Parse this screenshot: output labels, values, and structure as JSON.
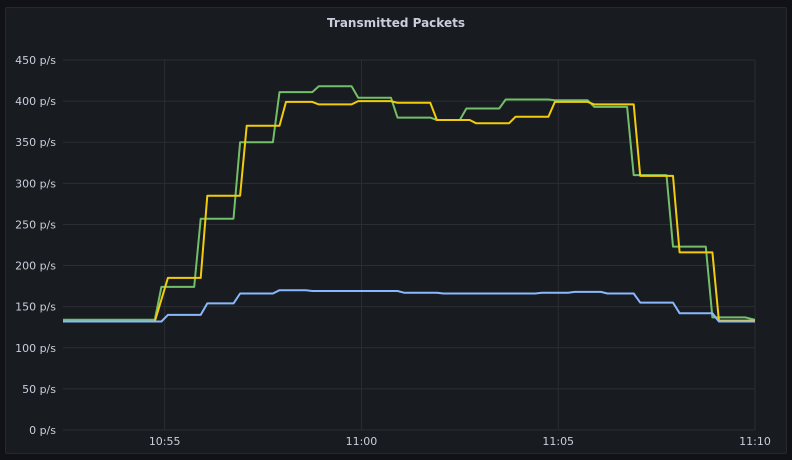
{
  "panel": {
    "title": "Transmitted Packets"
  },
  "colors": {
    "green": "#73bf69",
    "yellow": "#f2cc0c",
    "blue": "#8ab8ff",
    "grid": "#2b2e33"
  },
  "chart_data": {
    "type": "line",
    "title": "Transmitted Packets",
    "ylim": [
      0,
      450
    ],
    "y_ticks": [
      "0 p/s",
      "50 p/s",
      "100 p/s",
      "150 p/s",
      "200 p/s",
      "250 p/s",
      "300 p/s",
      "350 p/s",
      "400 p/s",
      "450 p/s"
    ],
    "y_tick_values": [
      0,
      50,
      100,
      150,
      200,
      250,
      300,
      350,
      400,
      450
    ],
    "x_ticks": [
      "10:55",
      "11:00",
      "11:05",
      "11:10"
    ],
    "x_tick_minutes": [
      "10:55",
      "11:00",
      "11:05",
      "11:10"
    ],
    "xlim": [
      "10:52:25",
      "11:10"
    ],
    "grid": true,
    "series": [
      {
        "color": "green",
        "points": [
          [
            "10:52:25",
            134
          ],
          [
            "10:54:45",
            134
          ],
          [
            "10:54:55",
            174
          ],
          [
            "10:55:45",
            174
          ],
          [
            "10:55:55",
            257
          ],
          [
            "10:56:45",
            257
          ],
          [
            "10:56:55",
            350
          ],
          [
            "10:57:45",
            350
          ],
          [
            "10:57:55",
            411
          ],
          [
            "10:58:45",
            411
          ],
          [
            "10:58:55",
            418
          ],
          [
            "10:59:45",
            418
          ],
          [
            "10:59:55",
            404
          ],
          [
            "11:00:45",
            404
          ],
          [
            "11:00:55",
            380
          ],
          [
            "11:01:45",
            380
          ],
          [
            "11:01:55",
            377
          ],
          [
            "11:02:30",
            377
          ],
          [
            "11:02:40",
            391
          ],
          [
            "11:03:30",
            391
          ],
          [
            "11:03:40",
            402
          ],
          [
            "11:04:45",
            402
          ],
          [
            "11:04:55",
            401
          ],
          [
            "11:05:45",
            401
          ],
          [
            "11:05:55",
            393
          ],
          [
            "11:06:45",
            393
          ],
          [
            "11:06:55",
            310
          ],
          [
            "11:07:45",
            310
          ],
          [
            "11:07:55",
            223
          ],
          [
            "11:08:45",
            223
          ],
          [
            "11:08:55",
            137
          ],
          [
            "11:09:45",
            137
          ],
          [
            "11:10:00",
            134
          ]
        ]
      },
      {
        "color": "yellow",
        "points": [
          [
            "10:52:25",
            132
          ],
          [
            "10:54:45",
            132
          ],
          [
            "10:55:05",
            185
          ],
          [
            "10:55:55",
            185
          ],
          [
            "10:56:05",
            285
          ],
          [
            "10:56:55",
            285
          ],
          [
            "10:57:05",
            370
          ],
          [
            "10:57:55",
            370
          ],
          [
            "10:58:05",
            399
          ],
          [
            "10:58:45",
            399
          ],
          [
            "10:58:55",
            396
          ],
          [
            "10:59:45",
            396
          ],
          [
            "10:59:55",
            400
          ],
          [
            "11:00:45",
            400
          ],
          [
            "11:00:55",
            398
          ],
          [
            "11:01:45",
            398
          ],
          [
            "11:01:55",
            377
          ],
          [
            "11:02:45",
            377
          ],
          [
            "11:02:55",
            373
          ],
          [
            "11:03:45",
            373
          ],
          [
            "11:03:55",
            381
          ],
          [
            "11:04:45",
            381
          ],
          [
            "11:04:55",
            399
          ],
          [
            "11:05:45",
            399
          ],
          [
            "11:05:55",
            396
          ],
          [
            "11:06:55",
            396
          ],
          [
            "11:07:05",
            309
          ],
          [
            "11:07:55",
            309
          ],
          [
            "11:08:05",
            216
          ],
          [
            "11:08:55",
            216
          ],
          [
            "11:09:05",
            133
          ],
          [
            "11:10:00",
            133
          ]
        ]
      },
      {
        "color": "blue",
        "points": [
          [
            "10:52:25",
            132
          ],
          [
            "10:54:55",
            132
          ],
          [
            "10:55:05",
            140
          ],
          [
            "10:55:55",
            140
          ],
          [
            "10:56:05",
            154
          ],
          [
            "10:56:45",
            154
          ],
          [
            "10:56:55",
            166
          ],
          [
            "10:57:45",
            166
          ],
          [
            "10:57:55",
            170
          ],
          [
            "10:58:35",
            170
          ],
          [
            "10:58:45",
            169
          ],
          [
            "11:00:55",
            169
          ],
          [
            "11:01:05",
            167
          ],
          [
            "11:01:55",
            167
          ],
          [
            "11:02:05",
            166
          ],
          [
            "11:04:25",
            166
          ],
          [
            "11:04:35",
            167
          ],
          [
            "11:05:15",
            167
          ],
          [
            "11:05:25",
            168
          ],
          [
            "11:06:05",
            168
          ],
          [
            "11:06:15",
            166
          ],
          [
            "11:06:55",
            166
          ],
          [
            "11:07:05",
            155
          ],
          [
            "11:07:55",
            155
          ],
          [
            "11:08:05",
            142
          ],
          [
            "11:08:55",
            142
          ],
          [
            "11:09:05",
            132
          ],
          [
            "11:10:00",
            132
          ]
        ]
      }
    ]
  }
}
